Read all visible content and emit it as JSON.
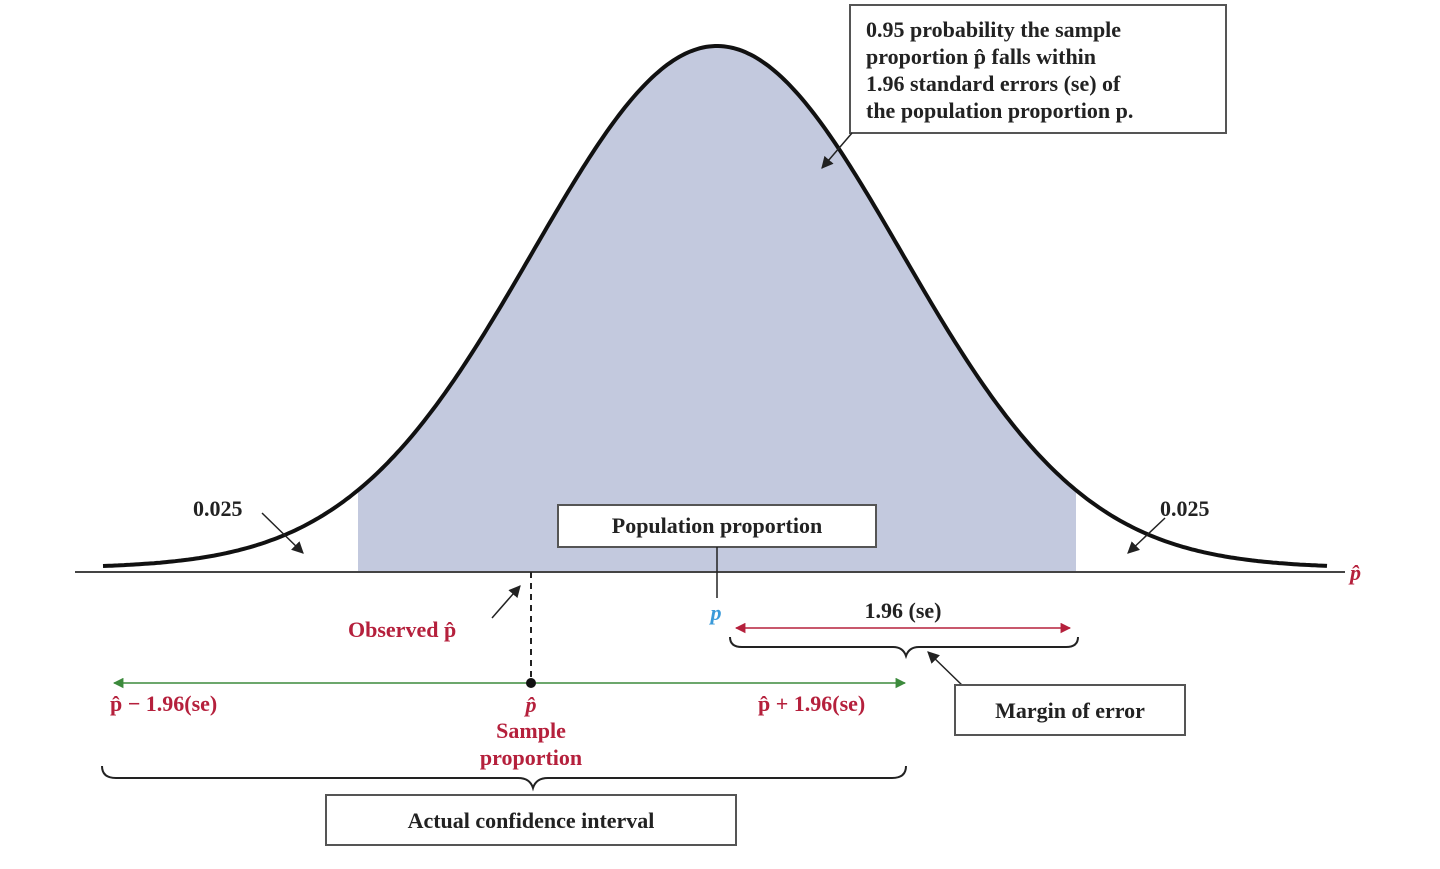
{
  "colors": {
    "shade": "#c3c9de",
    "curve": "#111111",
    "red": "#b5203c",
    "blue": "#3a9ad9",
    "green": "#3c8a3c",
    "box_border": "#555555",
    "text": "#222222"
  },
  "callout_lines": [
    "0.95 probability the sample",
    "proportion p̂ falls within",
    "1.96 standard errors (se) of",
    "the population proportion p."
  ],
  "left_tail": "0.025",
  "right_tail": "0.025",
  "axis_label": "p̂",
  "population_box": "Population proportion",
  "population_symbol": "p",
  "observed_label": "Observed p̂",
  "se_label": "1.96 (se)",
  "margin_box": "Margin of error",
  "ci_lower": "p̂ − 1.96(se)",
  "ci_upper": "p̂ + 1.96(se)",
  "sample_symbol": "p̂",
  "sample_caption": [
    "Sample",
    "proportion"
  ],
  "ci_box": "Actual confidence interval"
}
